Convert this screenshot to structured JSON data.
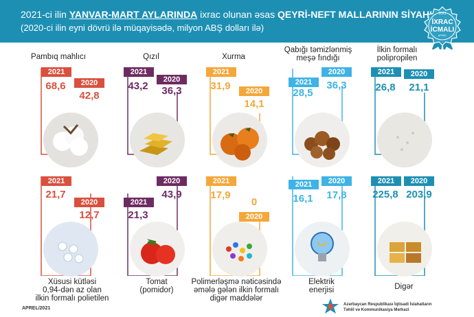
{
  "header": {
    "line1_a": "2021-ci ilin ",
    "line1_b": "YANVAR-MART AYLARINDA",
    "line1_c": " ixrac olunan əsas ",
    "line1_d": "QEYRİ-NEFT MALLARININ SİYAHISI",
    "line2": "(2020-ci ilin eyni dövrü ilə müqayisədə, milyon ABŞ dolları ilə)"
  },
  "badge": {
    "year": "2021",
    "line1": "İXRAC",
    "line2": "İCMALI",
    "sub": "APREL"
  },
  "year_a": "2021",
  "year_b": "2020",
  "items": [
    {
      "label1": "Pambıq mahlıcı",
      "label2": "",
      "label3": "",
      "v2021": "68,6",
      "v2020": "42,8",
      "color": "#d9503f"
    },
    {
      "label1": "Qızıl",
      "label2": "",
      "label3": "",
      "v2021": "43,2",
      "v2020": "36,3",
      "color": "#6e2b62"
    },
    {
      "label1": "Xurma",
      "label2": "",
      "label3": "",
      "v2021": "31,9",
      "v2020": "14,1",
      "color": "#f4a73a"
    },
    {
      "label1": "Qabığı təmizlənmiş",
      "label2": "meşə fındığı",
      "label3": "",
      "v2021": "28,5",
      "v2020": "36,3",
      "color": "#3fb3e6"
    },
    {
      "label1": "İlkin formalı",
      "label2": "polipropilen",
      "label3": "",
      "v2021": "26,8",
      "v2020": "21,1",
      "color": "#1d8fb3"
    },
    {
      "label1": "Xüsusi kütləsi",
      "label2": "0,94-dən az olan",
      "label3": "ilkin formalı polietilen",
      "v2021": "21,7",
      "v2020": "12,7",
      "color": "#d9503f"
    },
    {
      "label1": "Tomat",
      "label2": "(pomidor)",
      "label3": "",
      "v2021": "21,3",
      "v2020": "43,9",
      "color": "#6e2b62"
    },
    {
      "label1": "Polimerləşmə nəticəsində",
      "label2": "əmələ gələn ilkin formalı",
      "label3": "digər maddələr",
      "v2021": "17,9",
      "v2020": "0",
      "color": "#f4a73a"
    },
    {
      "label1": "Elektrik",
      "label2": "enerjisi",
      "label3": "",
      "v2021": "16,1",
      "v2020": "17,8",
      "color": "#3fb3e6"
    },
    {
      "label1": "Digər",
      "label2": "",
      "label3": "",
      "v2021": "225,8",
      "v2020": "203,9",
      "color": "#1d8fb3"
    }
  ],
  "footer": {
    "date": "APREL/2021",
    "org1": "Azərbaycan Respublikası İqtisadi İslahatların",
    "org2": "Təhlil və Kommunikasiya Mərkəzi"
  }
}
